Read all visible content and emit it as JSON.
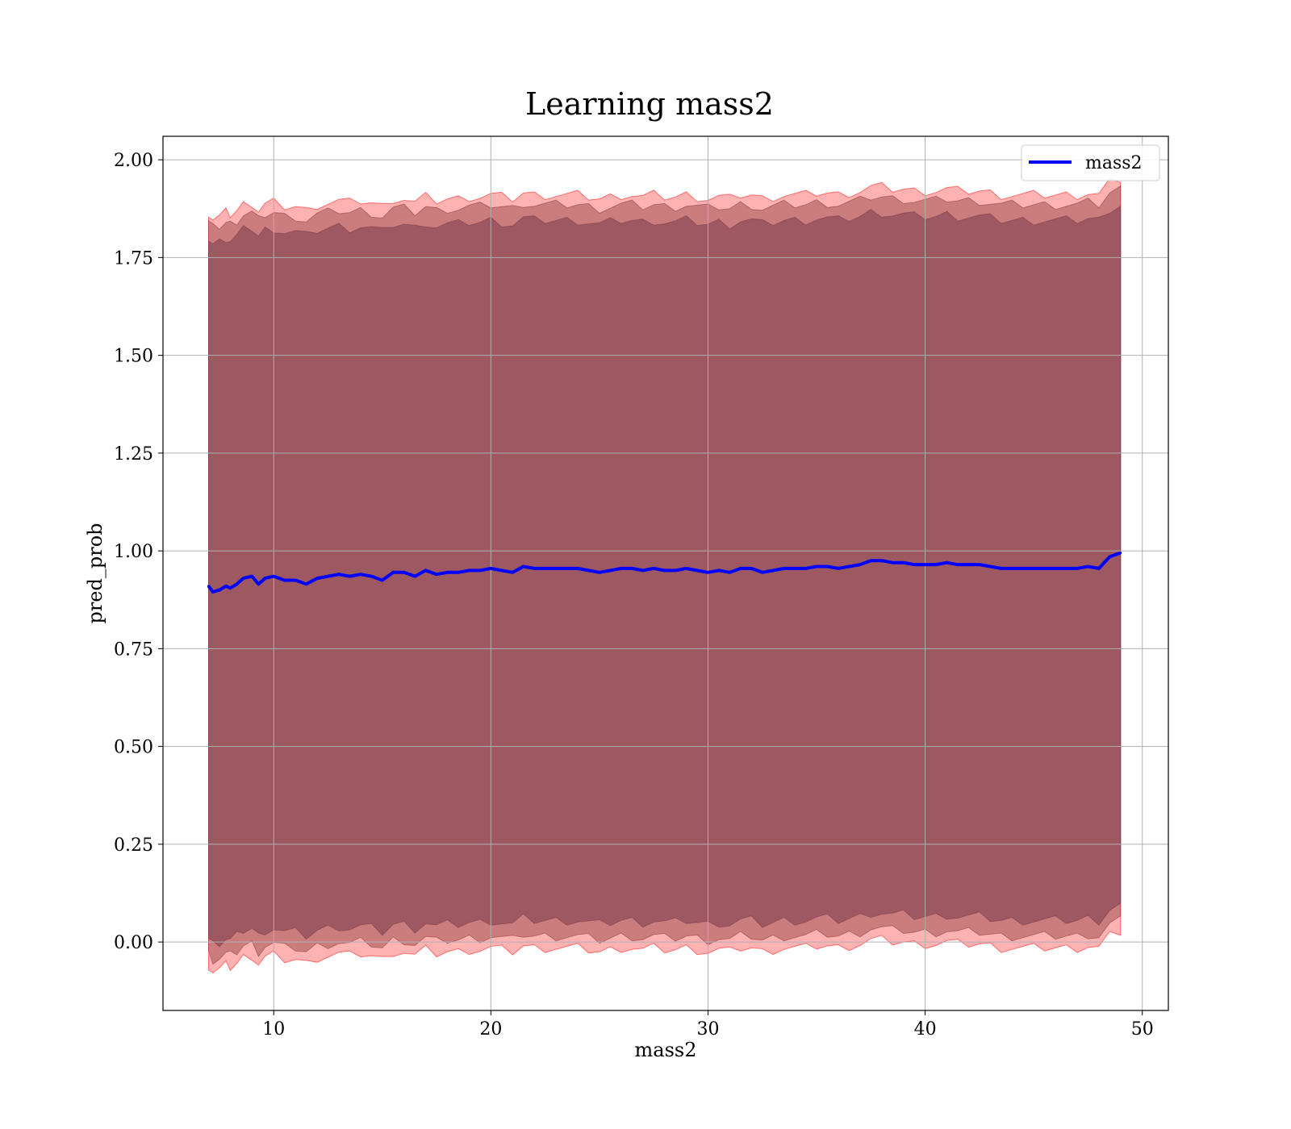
{
  "chart_data": {
    "type": "line",
    "title": "Learning mass2",
    "xlabel": "mass2",
    "ylabel": "pred_prob",
    "xlim": [
      4.9,
      51.2
    ],
    "ylim": [
      -0.175,
      2.06
    ],
    "xticks": [
      10,
      20,
      30,
      40,
      50
    ],
    "yticks": [
      0.0,
      0.25,
      0.5,
      0.75,
      1.0,
      1.25,
      1.5,
      1.75,
      2.0
    ],
    "xtick_labels": [
      "10",
      "20",
      "30",
      "40",
      "50"
    ],
    "ytick_labels": [
      "0.00",
      "0.25",
      "0.50",
      "0.75",
      "1.00",
      "1.25",
      "1.50",
      "1.75",
      "2.00"
    ],
    "grid": true,
    "legend": {
      "position": "top-right",
      "entries": [
        "mass2"
      ]
    },
    "series": [
      {
        "name": "mass2",
        "color": "#0000ff",
        "x": [
          7.0,
          7.2,
          7.5,
          7.8,
          8.0,
          8.3,
          8.6,
          9.0,
          9.3,
          9.6,
          10.0,
          10.5,
          11.0,
          11.5,
          12.0,
          12.5,
          13.0,
          13.5,
          14.0,
          14.5,
          15.0,
          15.5,
          16.0,
          16.5,
          17.0,
          17.5,
          18.0,
          18.5,
          19.0,
          19.5,
          20.0,
          20.5,
          21.0,
          21.5,
          22.0,
          22.5,
          23.0,
          23.5,
          24.0,
          24.5,
          25.0,
          25.5,
          26.0,
          26.5,
          27.0,
          27.5,
          28.0,
          28.5,
          29.0,
          29.5,
          30.0,
          30.5,
          31.0,
          31.5,
          32.0,
          32.5,
          33.0,
          33.5,
          34.0,
          34.5,
          35.0,
          35.5,
          36.0,
          36.5,
          37.0,
          37.5,
          38.0,
          38.5,
          39.0,
          39.5,
          40.0,
          40.5,
          41.0,
          41.5,
          42.0,
          42.5,
          43.0,
          43.5,
          44.0,
          44.5,
          45.0,
          45.5,
          46.0,
          46.5,
          47.0,
          47.5,
          48.0,
          48.5,
          49.0
        ],
        "values": [
          0.91,
          0.895,
          0.9,
          0.91,
          0.905,
          0.915,
          0.93,
          0.935,
          0.915,
          0.93,
          0.935,
          0.925,
          0.925,
          0.915,
          0.93,
          0.935,
          0.94,
          0.935,
          0.94,
          0.935,
          0.925,
          0.945,
          0.945,
          0.935,
          0.95,
          0.94,
          0.945,
          0.945,
          0.95,
          0.95,
          0.955,
          0.95,
          0.945,
          0.96,
          0.955,
          0.955,
          0.955,
          0.955,
          0.955,
          0.95,
          0.945,
          0.95,
          0.955,
          0.955,
          0.95,
          0.955,
          0.95,
          0.95,
          0.955,
          0.95,
          0.945,
          0.95,
          0.945,
          0.955,
          0.955,
          0.945,
          0.95,
          0.955,
          0.955,
          0.955,
          0.96,
          0.96,
          0.955,
          0.96,
          0.965,
          0.975,
          0.975,
          0.97,
          0.97,
          0.965,
          0.965,
          0.965,
          0.97,
          0.965,
          0.965,
          0.965,
          0.96,
          0.955,
          0.955,
          0.955,
          0.955,
          0.955,
          0.955,
          0.955,
          0.955,
          0.96,
          0.955,
          0.985,
          0.995
        ]
      }
    ],
    "bands": [
      {
        "color": "#ff0000",
        "opacity": 0.3,
        "offset_lower": 0.97,
        "offset_upper": 0.955
      },
      {
        "color": "#8b3a3a",
        "opacity": 0.45,
        "offset_lower": 0.94,
        "offset_upper": 0.93
      },
      {
        "color": "#7a3a4a",
        "opacity": 0.55,
        "offset_lower": 0.9,
        "offset_upper": 0.89
      }
    ]
  }
}
